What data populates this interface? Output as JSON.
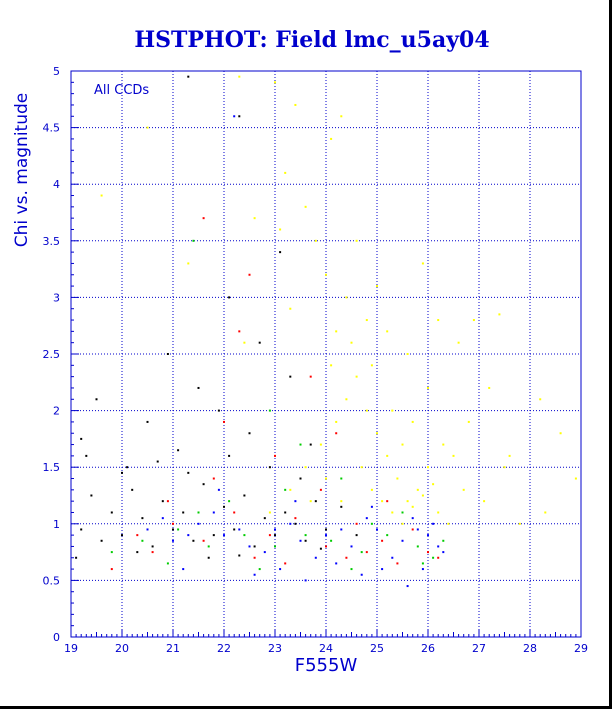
{
  "chart_data": {
    "type": "scatter",
    "title": "HSTPHOT: Field lmc_u5ay04",
    "xlabel": "F555W",
    "ylabel": "Chi vs. magnitude",
    "annotation": "All CCDs",
    "xlim": [
      19,
      29
    ],
    "ylim": [
      0,
      5
    ],
    "x_ticks": [
      "19",
      "20",
      "21",
      "22",
      "23",
      "24",
      "25",
      "26",
      "27",
      "28",
      "29"
    ],
    "y_ticks": [
      "0",
      "0.5",
      "1",
      "1.5",
      "2",
      "2.5",
      "3",
      "3.5",
      "4",
      "4.5",
      "5"
    ],
    "grid": true,
    "colors": {
      "axis": "#0000cc",
      "title": "#0000cc",
      "background": "#ffffff"
    },
    "series": [
      {
        "color": "#000000",
        "points": [
          [
            19.2,
            0.95
          ],
          [
            19.4,
            1.25
          ],
          [
            19.6,
            0.85
          ],
          [
            19.8,
            1.1
          ],
          [
            20.0,
            0.9
          ],
          [
            20.2,
            1.3
          ],
          [
            20.4,
            1.05
          ],
          [
            20.6,
            0.8
          ],
          [
            20.8,
            1.2
          ],
          [
            21.0,
            0.95
          ],
          [
            21.2,
            1.1
          ],
          [
            21.4,
            0.85
          ],
          [
            21.6,
            1.35
          ],
          [
            21.8,
            0.9
          ],
          [
            22.0,
            1.15
          ],
          [
            22.2,
            0.95
          ],
          [
            22.4,
            1.25
          ],
          [
            22.6,
            0.8
          ],
          [
            22.8,
            1.05
          ],
          [
            23.0,
            0.9
          ],
          [
            23.2,
            1.1
          ],
          [
            23.4,
            1.0
          ],
          [
            23.6,
            0.85
          ],
          [
            23.8,
            1.2
          ],
          [
            24.0,
            0.95
          ],
          [
            19.3,
            1.6
          ],
          [
            20.1,
            1.5
          ],
          [
            20.7,
            1.55
          ],
          [
            21.3,
            1.45
          ],
          [
            22.1,
            1.6
          ],
          [
            22.9,
            1.5
          ],
          [
            23.5,
            1.4
          ],
          [
            21.5,
            2.2
          ],
          [
            22.7,
            2.6
          ],
          [
            23.1,
            3.4
          ],
          [
            21.3,
            4.95
          ],
          [
            22.3,
            4.6
          ],
          [
            19.5,
            2.1
          ],
          [
            20.5,
            1.9
          ],
          [
            21.9,
            2.0
          ],
          [
            22.5,
            1.8
          ],
          [
            23.3,
            2.3
          ],
          [
            23.7,
            1.7
          ],
          [
            19.1,
            0.7
          ],
          [
            20.3,
            0.75
          ],
          [
            21.7,
            0.7
          ],
          [
            22.3,
            0.72
          ],
          [
            23.9,
            0.78
          ],
          [
            20.9,
            2.5
          ],
          [
            22.1,
            3.0
          ],
          [
            19.2,
            1.75
          ],
          [
            20.0,
            1.45
          ],
          [
            21.1,
            1.65
          ],
          [
            24.3,
            1.15
          ],
          [
            24.6,
            0.9
          ]
        ]
      },
      {
        "color": "#0000ff",
        "points": [
          [
            20.5,
            0.95
          ],
          [
            21.0,
            0.85
          ],
          [
            21.5,
            1.0
          ],
          [
            22.0,
            0.9
          ],
          [
            22.5,
            0.8
          ],
          [
            23.0,
            0.95
          ],
          [
            23.5,
            0.85
          ],
          [
            24.0,
            0.9
          ],
          [
            24.5,
            0.8
          ],
          [
            25.0,
            0.95
          ],
          [
            25.5,
            0.85
          ],
          [
            26.0,
            0.9
          ],
          [
            20.8,
            1.05
          ],
          [
            21.3,
            0.9
          ],
          [
            21.8,
            1.1
          ],
          [
            22.3,
            0.95
          ],
          [
            22.8,
            0.75
          ],
          [
            23.3,
            1.0
          ],
          [
            23.8,
            0.7
          ],
          [
            24.3,
            0.95
          ],
          [
            24.8,
            1.05
          ],
          [
            25.3,
            0.7
          ],
          [
            25.8,
            0.95
          ],
          [
            26.2,
            0.8
          ],
          [
            22.2,
            4.6
          ],
          [
            21.2,
            0.6
          ],
          [
            23.1,
            0.6
          ],
          [
            24.2,
            0.65
          ],
          [
            25.1,
            0.6
          ],
          [
            25.9,
            0.6
          ],
          [
            26.3,
            0.75
          ],
          [
            22.6,
            0.55
          ],
          [
            23.6,
            0.5
          ],
          [
            24.7,
            0.55
          ],
          [
            25.6,
            0.45
          ],
          [
            21.9,
            1.3
          ],
          [
            23.4,
            1.2
          ],
          [
            24.9,
            1.15
          ],
          [
            25.7,
            1.05
          ],
          [
            26.1,
            1.0
          ]
        ]
      },
      {
        "color": "#ff0000",
        "points": [
          [
            20.3,
            0.9
          ],
          [
            21.0,
            1.0
          ],
          [
            21.6,
            0.85
          ],
          [
            22.2,
            1.1
          ],
          [
            22.9,
            0.9
          ],
          [
            23.4,
            1.05
          ],
          [
            24.0,
            0.8
          ],
          [
            24.6,
            1.0
          ],
          [
            25.1,
            0.85
          ],
          [
            25.7,
            0.95
          ],
          [
            26.2,
            0.7
          ],
          [
            21.6,
            3.7
          ],
          [
            22.5,
            3.2
          ],
          [
            22.3,
            2.7
          ],
          [
            23.7,
            2.3
          ],
          [
            24.2,
            1.8
          ],
          [
            23.0,
            1.6
          ],
          [
            21.8,
            1.4
          ],
          [
            23.2,
            0.65
          ],
          [
            24.4,
            0.7
          ],
          [
            25.4,
            0.65
          ],
          [
            26.0,
            0.75
          ],
          [
            19.8,
            0.6
          ],
          [
            20.6,
            0.75
          ],
          [
            22.6,
            0.7
          ],
          [
            24.8,
            0.75
          ],
          [
            23.9,
            1.3
          ],
          [
            25.2,
            1.2
          ],
          [
            22.0,
            1.9
          ],
          [
            20.9,
            1.2
          ]
        ]
      },
      {
        "color": "#00cc00",
        "points": [
          [
            20.4,
            0.85
          ],
          [
            21.1,
            0.95
          ],
          [
            21.7,
            0.8
          ],
          [
            22.4,
            0.9
          ],
          [
            23.0,
            0.8
          ],
          [
            23.6,
            0.9
          ],
          [
            24.1,
            0.85
          ],
          [
            24.7,
            0.75
          ],
          [
            25.2,
            0.9
          ],
          [
            25.8,
            0.8
          ],
          [
            26.3,
            0.85
          ],
          [
            21.4,
            3.5
          ],
          [
            22.9,
            2.0
          ],
          [
            23.5,
            1.7
          ],
          [
            24.3,
            1.4
          ],
          [
            22.1,
            1.2
          ],
          [
            25.5,
            1.1
          ],
          [
            20.9,
            0.65
          ],
          [
            22.7,
            0.6
          ],
          [
            24.5,
            0.6
          ],
          [
            25.9,
            0.65
          ],
          [
            23.2,
            1.3
          ],
          [
            24.9,
            1.0
          ],
          [
            21.5,
            1.1
          ],
          [
            19.8,
            0.75
          ],
          [
            26.1,
            0.7
          ]
        ]
      },
      {
        "color": "#ffff00",
        "points": [
          [
            22.9,
            1.1
          ],
          [
            23.3,
            1.3
          ],
          [
            23.6,
            1.5
          ],
          [
            23.9,
            1.7
          ],
          [
            24.2,
            1.9
          ],
          [
            24.4,
            2.1
          ],
          [
            24.6,
            2.3
          ],
          [
            24.8,
            2.0
          ],
          [
            25.0,
            1.8
          ],
          [
            25.2,
            1.6
          ],
          [
            25.4,
            1.4
          ],
          [
            25.6,
            1.2
          ],
          [
            25.8,
            1.3
          ],
          [
            26.0,
            1.5
          ],
          [
            26.2,
            1.1
          ],
          [
            26.4,
            1.0
          ],
          [
            24.5,
            2.6
          ],
          [
            24.7,
            1.5
          ],
          [
            24.9,
            1.3
          ],
          [
            25.1,
            1.2
          ],
          [
            25.3,
            1.1
          ],
          [
            25.5,
            1.0
          ],
          [
            25.7,
            1.15
          ],
          [
            25.9,
            1.25
          ],
          [
            26.1,
            1.35
          ],
          [
            24.3,
            1.2
          ],
          [
            24.0,
            1.4
          ],
          [
            23.7,
            1.2
          ],
          [
            24.1,
            2.4
          ],
          [
            24.9,
            2.4
          ],
          [
            25.3,
            2.0
          ],
          [
            26.5,
            1.6
          ],
          [
            26.7,
            1.3
          ],
          [
            27.1,
            1.2
          ],
          [
            27.5,
            1.5
          ],
          [
            27.8,
            1.0
          ],
          [
            28.3,
            1.1
          ],
          [
            28.6,
            1.8
          ],
          [
            23.0,
            4.9
          ],
          [
            23.4,
            4.7
          ],
          [
            23.2,
            4.1
          ],
          [
            23.6,
            3.8
          ],
          [
            23.8,
            3.5
          ],
          [
            24.0,
            3.2
          ],
          [
            24.4,
            3.0
          ],
          [
            24.8,
            2.8
          ],
          [
            25.2,
            2.7
          ],
          [
            25.6,
            2.5
          ],
          [
            26.2,
            2.8
          ],
          [
            26.6,
            2.6
          ],
          [
            27.2,
            2.2
          ],
          [
            27.4,
            2.85
          ],
          [
            24.1,
            4.4
          ],
          [
            24.3,
            4.6
          ],
          [
            22.3,
            4.95
          ],
          [
            23.1,
            3.6
          ],
          [
            25.0,
            3.1
          ],
          [
            26.0,
            2.2
          ],
          [
            26.8,
            1.9
          ],
          [
            27.6,
            1.6
          ],
          [
            19.6,
            3.9
          ],
          [
            20.5,
            4.5
          ],
          [
            21.3,
            3.3
          ],
          [
            22.6,
            3.7
          ],
          [
            25.9,
            3.3
          ],
          [
            28.2,
            2.1
          ],
          [
            28.9,
            1.4
          ],
          [
            26.9,
            2.8
          ],
          [
            24.6,
            3.5
          ],
          [
            23.3,
            2.9
          ],
          [
            22.4,
            2.6
          ],
          [
            25.5,
            1.7
          ],
          [
            25.7,
            1.9
          ],
          [
            26.3,
            1.7
          ],
          [
            24.2,
            2.7
          ]
        ]
      }
    ]
  }
}
